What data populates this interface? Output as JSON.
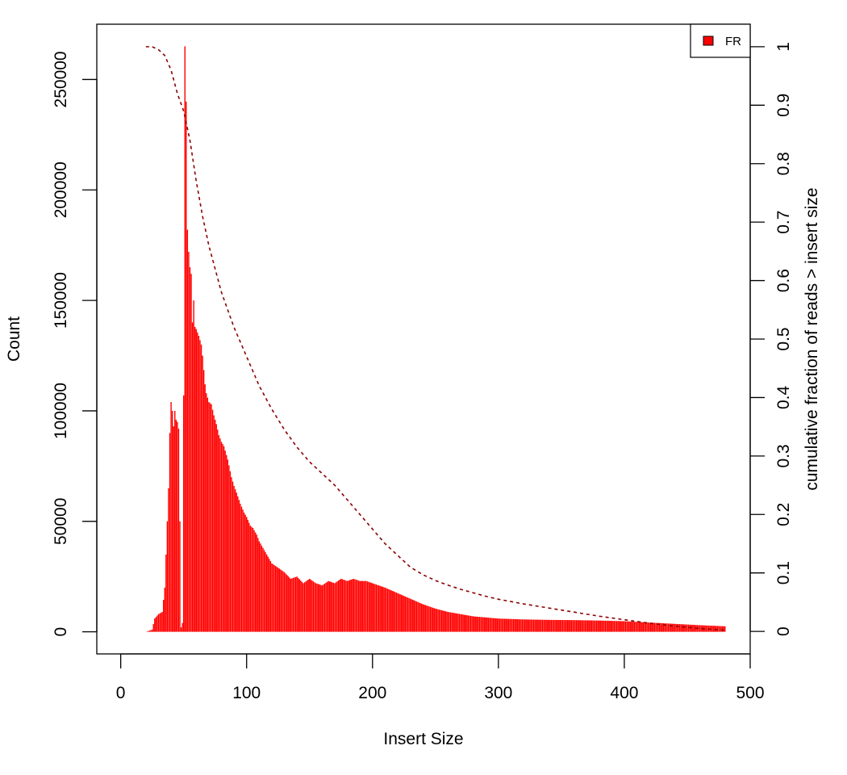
{
  "chart_data": {
    "type": "bar",
    "xlabel": "Insert Size",
    "ylabel": "Count",
    "y2label": "cumulative fraction of reads > insert size",
    "xlim": [
      -19,
      500
    ],
    "ylim": [
      -10000,
      275000
    ],
    "y2lim": [
      -0.0385,
      1.0385
    ],
    "xticks": [
      0,
      100,
      200,
      300,
      400,
      500
    ],
    "yticks": [
      0,
      50000,
      100000,
      150000,
      200000,
      250000
    ],
    "y2ticks": [
      0,
      0.1,
      0.2,
      0.3,
      0.4,
      0.5,
      0.6,
      0.7,
      0.8,
      0.9,
      1
    ],
    "grid": false,
    "legend": {
      "position": "top-right",
      "entries": [
        "FR"
      ]
    },
    "colors": {
      "bars": "#ff0000",
      "cumulative_line": "#8b0000",
      "legend_fill": "#ff0000"
    },
    "histogram_knots": [
      [
        20,
        0
      ],
      [
        25,
        1000
      ],
      [
        27,
        6000
      ],
      [
        30,
        8000
      ],
      [
        33,
        9000
      ],
      [
        35,
        20000
      ],
      [
        37,
        50000
      ],
      [
        38,
        65000
      ],
      [
        39,
        90000
      ],
      [
        40,
        104000
      ],
      [
        41,
        100000
      ],
      [
        42,
        93000
      ],
      [
        43,
        100000
      ],
      [
        44,
        96000
      ],
      [
        45,
        95000
      ],
      [
        46,
        92000
      ],
      [
        47,
        50000
      ],
      [
        48,
        2000
      ],
      [
        49,
        4000
      ],
      [
        50,
        107000
      ],
      [
        51,
        265000
      ],
      [
        52,
        240000
      ],
      [
        53,
        182000
      ],
      [
        54,
        172000
      ],
      [
        55,
        165000
      ],
      [
        56,
        162000
      ],
      [
        57,
        140000
      ],
      [
        58,
        150000
      ],
      [
        59,
        138000
      ],
      [
        60,
        137000
      ],
      [
        62,
        134000
      ],
      [
        64,
        130000
      ],
      [
        65,
        125000
      ],
      [
        67,
        112000
      ],
      [
        68,
        108000
      ],
      [
        70,
        104000
      ],
      [
        72,
        103000
      ],
      [
        74,
        98000
      ],
      [
        76,
        94000
      ],
      [
        78,
        89000
      ],
      [
        80,
        86000
      ],
      [
        82,
        84000
      ],
      [
        85,
        78000
      ],
      [
        88,
        70000
      ],
      [
        90,
        66000
      ],
      [
        92,
        63000
      ],
      [
        95,
        58000
      ],
      [
        98,
        54000
      ],
      [
        100,
        52000
      ],
      [
        103,
        48000
      ],
      [
        105,
        47000
      ],
      [
        108,
        44000
      ],
      [
        110,
        41000
      ],
      [
        113,
        38000
      ],
      [
        115,
        36000
      ],
      [
        118,
        33000
      ],
      [
        120,
        31000
      ],
      [
        125,
        29000
      ],
      [
        130,
        27000
      ],
      [
        135,
        24000
      ],
      [
        140,
        25000
      ],
      [
        145,
        22000
      ],
      [
        150,
        24000
      ],
      [
        155,
        22000
      ],
      [
        160,
        21000
      ],
      [
        165,
        23000
      ],
      [
        170,
        22000
      ],
      [
        175,
        24000
      ],
      [
        180,
        23000
      ],
      [
        185,
        24000
      ],
      [
        190,
        23000
      ],
      [
        195,
        23000
      ],
      [
        200,
        22000
      ],
      [
        205,
        21000
      ],
      [
        210,
        20000
      ],
      [
        220,
        17500
      ],
      [
        230,
        15000
      ],
      [
        240,
        12500
      ],
      [
        250,
        10500
      ],
      [
        260,
        9000
      ],
      [
        270,
        8000
      ],
      [
        280,
        7000
      ],
      [
        290,
        6500
      ],
      [
        300,
        6000
      ],
      [
        320,
        5600
      ],
      [
        340,
        5400
      ],
      [
        360,
        5300
      ],
      [
        380,
        5100
      ],
      [
        400,
        4800
      ],
      [
        420,
        4200
      ],
      [
        440,
        3600
      ],
      [
        460,
        3000
      ],
      [
        480,
        2500
      ]
    ],
    "cumulative_knots": [
      [
        20,
        1.0
      ],
      [
        25,
        1.0
      ],
      [
        30,
        0.995
      ],
      [
        35,
        0.985
      ],
      [
        40,
        0.96
      ],
      [
        45,
        0.92
      ],
      [
        50,
        0.89
      ],
      [
        55,
        0.84
      ],
      [
        60,
        0.77
      ],
      [
        65,
        0.71
      ],
      [
        70,
        0.66
      ],
      [
        75,
        0.62
      ],
      [
        80,
        0.58
      ],
      [
        85,
        0.55
      ],
      [
        90,
        0.52
      ],
      [
        95,
        0.495
      ],
      [
        100,
        0.47
      ],
      [
        110,
        0.42
      ],
      [
        120,
        0.38
      ],
      [
        130,
        0.345
      ],
      [
        140,
        0.315
      ],
      [
        150,
        0.29
      ],
      [
        160,
        0.27
      ],
      [
        170,
        0.25
      ],
      [
        180,
        0.225
      ],
      [
        190,
        0.2
      ],
      [
        200,
        0.175
      ],
      [
        210,
        0.15
      ],
      [
        220,
        0.13
      ],
      [
        230,
        0.11
      ],
      [
        240,
        0.097
      ],
      [
        250,
        0.087
      ],
      [
        260,
        0.079
      ],
      [
        270,
        0.072
      ],
      [
        280,
        0.066
      ],
      [
        290,
        0.06
      ],
      [
        300,
        0.055
      ],
      [
        320,
        0.047
      ],
      [
        340,
        0.04
      ],
      [
        360,
        0.033
      ],
      [
        380,
        0.026
      ],
      [
        400,
        0.02
      ],
      [
        420,
        0.014
      ],
      [
        440,
        0.009
      ],
      [
        460,
        0.005
      ],
      [
        480,
        0.002
      ]
    ]
  }
}
